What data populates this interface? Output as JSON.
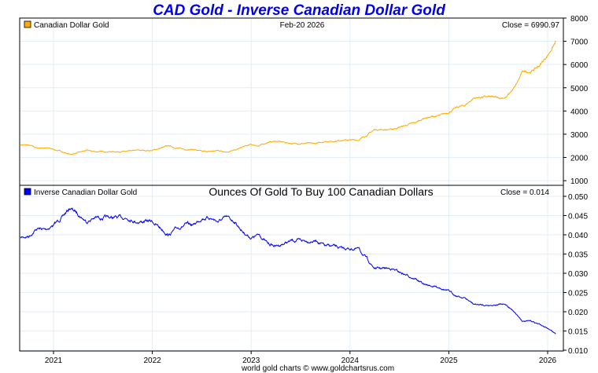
{
  "chart_data": [
    {
      "type": "line",
      "title": "CAD Gold - Inverse Canadian Dollar Gold",
      "legend": "Canadian Dollar Gold",
      "date_label": "Feb-20  2026",
      "close_label": "Close = 6990.97",
      "color": "#ffaa00",
      "ylim": [
        1000,
        8000
      ],
      "yticks": [
        1000,
        2000,
        3000,
        4000,
        5000,
        6000,
        7000,
        8000
      ],
      "legend_position": "top-left",
      "grid": true,
      "x_start": "2020-09",
      "series": [
        {
          "name": "Canadian Dollar Gold",
          "frequency": "monthly",
          "values": [
            2550,
            2520,
            2400,
            2420,
            2350,
            2250,
            2130,
            2200,
            2300,
            2250,
            2250,
            2250,
            2250,
            2250,
            2300,
            2300,
            2300,
            2400,
            2500,
            2400,
            2350,
            2350,
            2250,
            2250,
            2300,
            2250,
            2300,
            2450,
            2550,
            2500,
            2650,
            2700,
            2650,
            2600,
            2600,
            2600,
            2600,
            2700,
            2700,
            2750,
            2750,
            2750,
            2950,
            3200,
            3200,
            3200,
            3300,
            3400,
            3500,
            3700,
            3750,
            3800,
            3950,
            4150,
            4250,
            4550,
            4600,
            4600,
            4550,
            4600,
            5000,
            5700,
            5700,
            5950,
            6400,
            6990.97
          ]
        }
      ]
    },
    {
      "type": "line",
      "title": "Ounces Of Gold To Buy 100 Canadian Dollars",
      "legend": "Inverse Canadian Dollar Gold",
      "close_label": "Close = 0.014",
      "color": "#0000ff",
      "ylim": [
        0.01,
        0.05
      ],
      "yticks": [
        "0.010",
        "0.015",
        "0.020",
        "0.025",
        "0.030",
        "0.035",
        "0.040",
        "0.045",
        "0.050"
      ],
      "legend_position": "top-left",
      "grid": true,
      "derived_from": "100 / Canadian Dollar Gold"
    }
  ],
  "x_axis": {
    "ticks": [
      "2021",
      "2022",
      "2023",
      "2024",
      "2025",
      "2026"
    ]
  },
  "footer": "world gold charts © www.goldchartsrus.com"
}
